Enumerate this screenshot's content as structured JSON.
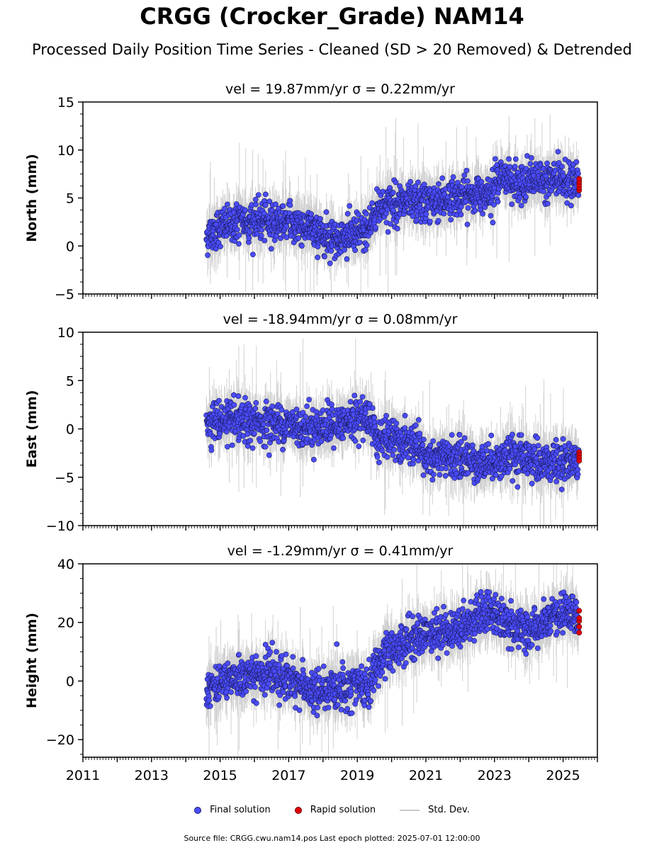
{
  "title": "CRGG (Crocker_Grade) NAM14",
  "subtitle": "Processed Daily Position Time Series - Cleaned (SD > 20 Removed) & Detrended",
  "legend": {
    "final": "Final solution",
    "rapid": "Rapid solution",
    "sd": "Std. Dev."
  },
  "footnote": "Source file: CRGG.cwu.nam14.pos  Last epoch plotted: 2025-07-01 12:00:00",
  "colors": {
    "final": "#4a4cff",
    "rapid": "#e00000",
    "sd": "#9a9a9a"
  },
  "chart_data": [
    {
      "type": "scatter",
      "title": "vel = 19.87mm/yr   σ = 0.22mm/yr",
      "ylabel": "North (mm)",
      "xlim": [
        2011,
        2026
      ],
      "ylim": [
        -5,
        15
      ],
      "yticks": [
        "−5",
        "0",
        "5",
        "10",
        "15"
      ],
      "ytick_values": [
        -5,
        0,
        5,
        10,
        15
      ],
      "series_trend": {
        "x": [
          2014.6,
          2015.0,
          2015.5,
          2016.0,
          2016.5,
          2017.0,
          2017.5,
          2018.0,
          2018.5,
          2019.0,
          2019.3,
          2019.6,
          2020.0,
          2020.5,
          2021.0,
          2021.5,
          2022.0,
          2022.5,
          2022.9,
          2023.3,
          2023.7,
          2024.0,
          2024.5,
          2025.0,
          2025.45
        ],
        "y": [
          1.0,
          2.0,
          2.5,
          2.6,
          2.6,
          2.5,
          2.0,
          1.2,
          0.8,
          1.2,
          1.8,
          4.0,
          4.5,
          4.3,
          4.5,
          4.8,
          5.2,
          5.3,
          6.0,
          7.5,
          6.0,
          6.8,
          7.0,
          6.8,
          6.5
        ]
      },
      "scatter_sd": 1.0,
      "rapid": {
        "x": 2025.47,
        "y": [
          5.8,
          6.1,
          6.4,
          6.7,
          7.0
        ]
      }
    },
    {
      "type": "scatter",
      "title": "vel = -18.94mm/yr   σ = 0.08mm/yr",
      "ylabel": "East (mm)",
      "xlim": [
        2011,
        2026
      ],
      "ylim": [
        -10,
        10
      ],
      "yticks": [
        "−10",
        "−5",
        "0",
        "5",
        "10"
      ],
      "ytick_values": [
        -10,
        -5,
        0,
        5,
        10
      ],
      "series_trend": {
        "x": [
          2014.6,
          2015.0,
          2015.5,
          2016.0,
          2016.5,
          2017.0,
          2017.5,
          2018.0,
          2018.5,
          2019.0,
          2019.3,
          2019.6,
          2020.0,
          2020.5,
          2021.0,
          2021.5,
          2022.0,
          2022.5,
          2023.0,
          2023.5,
          2024.0,
          2024.5,
          2025.0,
          2025.45
        ],
        "y": [
          0.8,
          0.8,
          0.6,
          0.6,
          0.6,
          0.4,
          0.2,
          0.2,
          0.4,
          0.9,
          1.5,
          -1.0,
          -1.2,
          -1.5,
          -3.0,
          -3.0,
          -3.0,
          -3.5,
          -3.2,
          -3.0,
          -3.2,
          -3.5,
          -3.4,
          -3.0
        ]
      },
      "scatter_sd": 1.0,
      "rapid": {
        "x": 2025.47,
        "y": [
          -2.4,
          -2.7,
          -3.0,
          -3.3
        ]
      }
    },
    {
      "type": "scatter",
      "title": "vel = -1.29mm/yr   σ = 0.41mm/yr",
      "ylabel": "Height (mm)",
      "xlim": [
        2011,
        2026
      ],
      "ylim": [
        -26,
        40
      ],
      "yticks": [
        "−20",
        "0",
        "20",
        "40"
      ],
      "ytick_values": [
        -20,
        0,
        20,
        40
      ],
      "xticks": [
        "2011",
        "2013",
        "2015",
        "2017",
        "2019",
        "2021",
        "2023",
        "2025"
      ],
      "xtick_values": [
        2011,
        2013,
        2015,
        2017,
        2019,
        2021,
        2023,
        2025
      ],
      "series_trend": {
        "x": [
          2014.6,
          2015.0,
          2015.5,
          2016.0,
          2016.5,
          2017.0,
          2017.5,
          2018.0,
          2018.5,
          2019.0,
          2019.3,
          2019.6,
          2020.0,
          2020.5,
          2021.0,
          2021.5,
          2022.0,
          2022.5,
          2022.9,
          2023.3,
          2023.7,
          2024.0,
          2024.5,
          2025.0,
          2025.45
        ],
        "y": [
          -2.0,
          0.0,
          1.0,
          2.0,
          2.0,
          1.0,
          -3.0,
          -4.0,
          -2.0,
          -1.0,
          -3.0,
          6.0,
          10.0,
          14.0,
          16.0,
          17.0,
          18.0,
          22.0,
          24.0,
          20.0,
          18.0,
          16.0,
          20.0,
          23.0,
          21.0
        ]
      },
      "scatter_sd": 3.5,
      "rapid": {
        "x": 2025.47,
        "y": [
          16.5,
          18.5,
          20.5,
          21.5,
          24.0
        ]
      }
    }
  ]
}
